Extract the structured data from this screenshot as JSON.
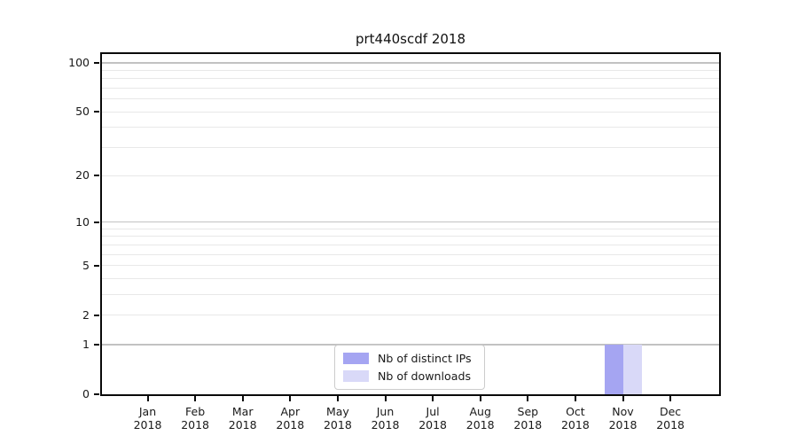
{
  "chart_data": {
    "type": "bar",
    "title": "prt440scdf 2018",
    "x_year": "2018",
    "categories": [
      "Jan",
      "Feb",
      "Mar",
      "Apr",
      "May",
      "Jun",
      "Jul",
      "Aug",
      "Sep",
      "Oct",
      "Nov",
      "Dec"
    ],
    "series": [
      {
        "name": "Nb of distinct IPs",
        "color": "#a5a5f2",
        "values": [
          0,
          0,
          0,
          0,
          0,
          0,
          0,
          0,
          0,
          0,
          1,
          0
        ]
      },
      {
        "name": "Nb of downloads",
        "color": "#d9d9f8",
        "values": [
          0,
          0,
          0,
          0,
          0,
          0,
          0,
          0,
          0,
          0,
          1,
          0
        ]
      }
    ],
    "yscale": "log1p",
    "ylim": [
      0,
      113
    ],
    "yticks_labeled": [
      0,
      1,
      2,
      5,
      10,
      20,
      50,
      100
    ],
    "gridlines_major": [
      1,
      10,
      100
    ],
    "gridlines_minor": [
      2,
      3,
      4,
      5,
      6,
      7,
      8,
      9,
      20,
      30,
      40,
      50,
      60,
      70,
      80,
      90
    ],
    "legend_position": "lower center",
    "grid": true,
    "colors": {
      "grid_major": "#c2c2c2",
      "grid_minor": "#e8e8e8",
      "axis": "#0a0a0a",
      "text": "#191919",
      "legend_border": "#cccccc",
      "background": "#ffffff"
    }
  }
}
